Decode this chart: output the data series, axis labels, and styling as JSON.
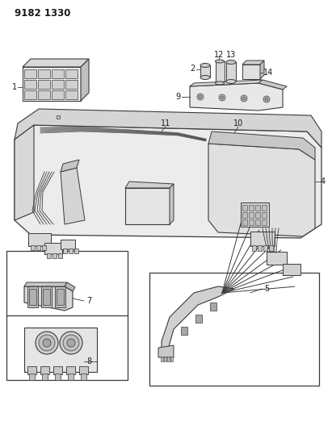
{
  "title": "9182 1330",
  "bg_color": "#ffffff",
  "line_color": "#3a3a3a",
  "text_color": "#1a1a1a",
  "fig_width": 4.11,
  "fig_height": 5.33,
  "dpi": 100,
  "gray_light": "#c8c8c8",
  "gray_mid": "#a0a0a0",
  "gray_dark": "#707070",
  "gray_fill": "#e8e8e8",
  "white": "#ffffff"
}
